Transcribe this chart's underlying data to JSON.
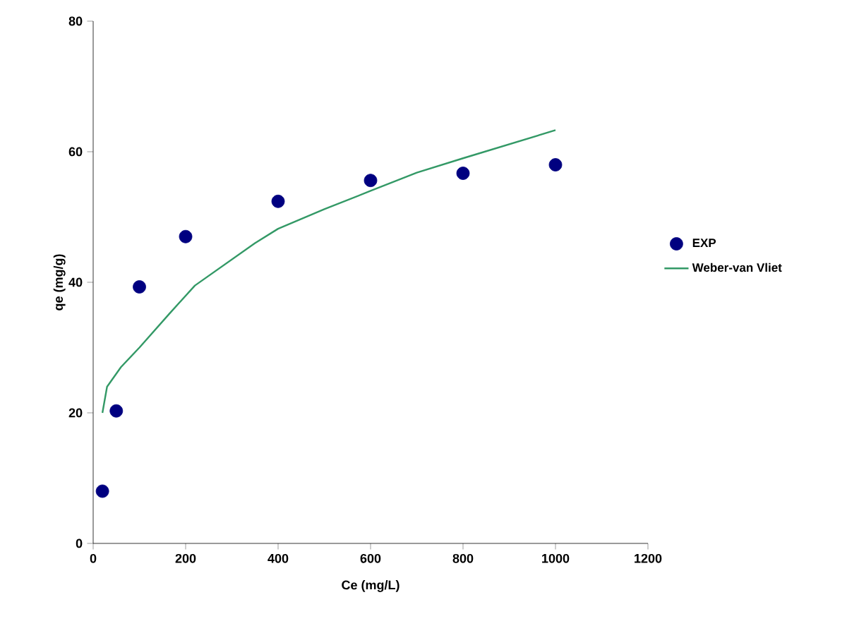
{
  "chart_data": {
    "type": "scatter",
    "xlabel": "Ce (mg/L)",
    "ylabel": "qe (mg/g)",
    "xlim": [
      0,
      1200
    ],
    "ylim": [
      0,
      80
    ],
    "xticks": [
      0,
      200,
      400,
      600,
      800,
      1000,
      1200
    ],
    "yticks": [
      0,
      20,
      40,
      60,
      80
    ],
    "legend": "right",
    "grid": false,
    "series": [
      {
        "name": "EXP",
        "marker": "circle",
        "color": "#000080",
        "x": [
          20,
          50,
          100,
          200,
          400,
          600,
          800,
          1000
        ],
        "values": [
          8,
          20.3,
          39.3,
          47,
          52.4,
          55.6,
          56.7,
          58
        ]
      },
      {
        "name": "Weber-van Vliet",
        "type": "line",
        "marker": "none",
        "color": "#339966",
        "x": [
          20,
          30,
          60,
          100,
          165,
          220,
          350,
          400,
          500,
          600,
          700,
          800,
          1000
        ],
        "values": [
          20,
          24,
          27,
          30,
          35.2,
          39.5,
          46,
          48.2,
          51.2,
          54,
          56.8,
          59,
          63.3
        ]
      }
    ]
  }
}
